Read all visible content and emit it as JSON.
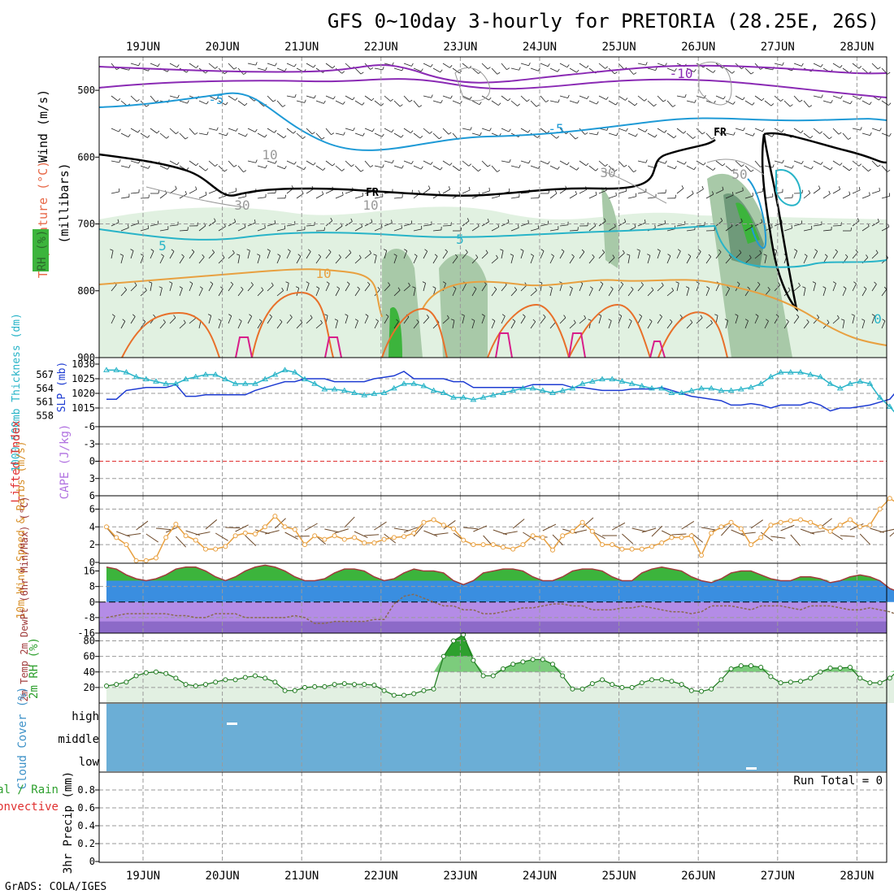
{
  "title": "GFS 0~10day 3-hourly for PRETORIA (28.25E, 26S)",
  "footer": "GrADS: COLA/IGES",
  "colors": {
    "frame": "#000000",
    "grid": "#9a9a9a",
    "slp": "#1e3cd2",
    "thickness": "#28b4c8",
    "wind10m": "#e8a040",
    "windbarb": "#6e4a2a",
    "temp": "#a03c3c",
    "dewpt": "#8a6a50",
    "rh": "#2ea02e",
    "cloud": "#6baed6",
    "lifted": "#e03030",
    "cape": "#b070e0",
    "tempFillPos": "#3cb43c",
    "tempFillBlue": "#3a8ee0",
    "tempFillPurple": "#b48ce6"
  },
  "chart_data": [
    {
      "id": "upper-air",
      "type": "contour",
      "title": "Upper-air cross section",
      "ylabel_parts": [
        "RH (%)",
        "Temperature (°C)",
        "Wind (m/s)"
      ],
      "yunit": "(millibars)",
      "yticks": [
        500,
        600,
        700,
        800,
        900
      ],
      "ylim": [
        450,
        900
      ],
      "contour_labels": [
        "-10",
        "-5",
        "-5",
        "5",
        "5",
        "10",
        "FR",
        "FR",
        "30",
        "30",
        "50",
        "10",
        "0",
        "10"
      ]
    },
    {
      "id": "slp-thickness",
      "type": "line",
      "ylabel_left": "1000-500mb Thickness (dm)",
      "ylabel_right": "SLP (mb)",
      "left_ticks": [
        "567",
        "564",
        "561",
        "558"
      ],
      "right_ticks": [
        "1030",
        "1025",
        "1020",
        "1015"
      ],
      "left_lim": [
        556.5,
        569.3
      ],
      "right_lim": [
        1010,
        1030
      ],
      "series": [
        {
          "name": "SLP (mb)",
          "axis": "right",
          "values": [
            1018,
            1018,
            1021,
            1021.5,
            1022,
            1022,
            1022,
            1023,
            1019,
            1019,
            1019.5,
            1019.5,
            1019.5,
            1019.5,
            1019.5,
            1021,
            1022,
            1023,
            1024,
            1024,
            1025,
            1025,
            1025,
            1024,
            1024,
            1024,
            1024,
            1025,
            1025.5,
            1026,
            1027.5,
            1025,
            1025,
            1025,
            1025,
            1024,
            1024,
            1022,
            1022,
            1022,
            1022,
            1022,
            1022,
            1023,
            1023,
            1023,
            1023,
            1022,
            1022,
            1021.5,
            1021,
            1021,
            1021,
            1021.5,
            1021.5,
            1021.5,
            1022,
            1021,
            1020,
            1019,
            1018.5,
            1018,
            1017.5,
            1016,
            1016,
            1016.5,
            1016,
            1015,
            1016,
            1016,
            1016,
            1017,
            1016,
            1014,
            1015,
            1015,
            1015.5,
            1016,
            1017,
            1018,
            1022,
            1025,
            1027,
            1028,
            1029,
            1028,
            1026,
            1025,
            1025,
            1026.5,
            1027,
            1028,
            1028,
            1028.5
          ]
        },
        {
          "name": "1000-500mb Thickness (dm)",
          "axis": "left",
          "values": [
            568,
            568,
            567.5,
            566.5,
            566,
            565.5,
            565,
            565,
            566,
            566.5,
            567,
            567,
            566,
            565,
            565,
            565,
            566,
            567,
            568,
            567.5,
            566,
            565,
            563.8,
            563.8,
            563.5,
            563,
            562.5,
            562.8,
            563,
            564,
            565,
            565,
            564.5,
            563.5,
            563,
            562,
            562,
            561.5,
            562,
            562.5,
            563,
            563.5,
            564,
            564,
            563.5,
            563,
            563.5,
            564,
            565,
            565.5,
            566,
            566,
            565.5,
            565,
            564.5,
            564,
            564,
            563,
            563,
            563.5,
            564,
            564,
            563.5,
            563.5,
            563.8,
            564.2,
            565,
            566.5,
            567.5,
            567.5,
            567.5,
            567,
            566.5,
            565,
            564,
            565,
            565.5,
            565,
            562,
            560,
            557.5,
            557.5,
            557.5,
            558,
            557.5,
            558,
            559.5,
            561,
            561.5,
            561,
            560.5,
            559.8,
            559,
            559.5
          ]
        }
      ]
    },
    {
      "id": "cape-li",
      "type": "line",
      "ylabel_left": "Lifted Index",
      "ylabel_right": "CAPE (J/kg)",
      "yticks": [
        "-6",
        "-3",
        "0",
        "3",
        "6"
      ],
      "ylim": [
        -6,
        6
      ],
      "series": [
        {
          "name": "Lifted Index",
          "values": []
        },
        {
          "name": "CAPE (J/kg)",
          "values": []
        }
      ]
    },
    {
      "id": "wind10m",
      "type": "line",
      "ylabel": "10m Wind Speed & Barbs (m/s)",
      "yticks": [
        "6",
        "4",
        "2",
        "0"
      ],
      "ylim": [
        0,
        7.5
      ],
      "series": [
        {
          "name": "10m Wind Speed (m/s)",
          "values": [
            4,
            2.8,
            2,
            0.2,
            0.2,
            0.5,
            2.8,
            4.3,
            3,
            2.5,
            1.5,
            1.5,
            1.8,
            3,
            3.3,
            3.2,
            4,
            5.2,
            4,
            3.7,
            2,
            3,
            2.6,
            3,
            2.6,
            2.8,
            2.2,
            2.2,
            2.6,
            2.8,
            2.9,
            3.3,
            4.5,
            4.8,
            4.2,
            3.8,
            2.5,
            2,
            2,
            2,
            1.7,
            1.5,
            2,
            3,
            2.8,
            1.4,
            3,
            3.5,
            4.5,
            3.5,
            2,
            2,
            1.5,
            1.5,
            1.5,
            1.8,
            2.2,
            2.8,
            2.8,
            3,
            0.8,
            3.3,
            4,
            4.5,
            3.8,
            2,
            2.8,
            4.2,
            4.5,
            4.7,
            4.8,
            4.5,
            4,
            3.5,
            4.2,
            4.8,
            4,
            4.2,
            6,
            7.2,
            6.5,
            6,
            5.8,
            5.5,
            5.5,
            5.8,
            3,
            2.5,
            2.9,
            3.2,
            2.5,
            2,
            2.8,
            2.5
          ]
        }
      ]
    },
    {
      "id": "temp2m",
      "type": "area",
      "ylabel": "2m Temp 2m DewPt (6hr Min/Max) (°C)",
      "yticks": [
        "16",
        "8",
        "0",
        "-8",
        "-16"
      ],
      "ylim": [
        -16,
        20
      ],
      "series": [
        {
          "name": "2m Temp (°C)",
          "values": [
            18,
            17,
            14,
            12,
            11,
            12,
            14,
            17,
            18,
            18,
            16,
            13,
            11,
            13,
            16,
            18,
            19,
            18,
            16,
            13,
            11,
            11,
            12,
            15,
            17,
            17,
            16,
            13,
            11,
            12,
            15,
            17,
            16,
            16,
            15,
            11,
            9,
            11,
            15,
            16,
            17,
            17,
            16,
            13,
            11,
            11,
            13,
            16,
            17,
            17,
            16,
            13,
            11,
            11,
            15,
            17,
            18,
            17,
            16,
            13,
            11,
            10,
            12,
            15,
            16,
            16,
            14,
            12,
            11,
            11,
            13,
            13,
            12,
            10,
            11,
            13,
            14,
            13,
            11,
            7,
            5,
            4,
            2.5,
            5,
            10,
            10,
            8,
            7,
            6,
            6,
            5,
            5,
            4,
            4
          ]
        },
        {
          "name": "2m DewPt (°C)",
          "values": [
            -8,
            -7,
            -6,
            -6,
            -6,
            -6,
            -6,
            -7,
            -7,
            -8,
            -8,
            -6,
            -6,
            -6,
            -8,
            -8,
            -8,
            -8,
            -8,
            -7,
            -8,
            -11,
            -11,
            -10,
            -10,
            -10,
            -10,
            -9,
            -9,
            -1,
            3,
            4,
            2,
            0,
            -2,
            -2,
            -4,
            -4,
            -6,
            -6,
            -5,
            -4,
            -3,
            -3,
            -2,
            -1,
            -1,
            -2,
            -2,
            -4,
            -4,
            -4,
            -3,
            -3,
            -2,
            -3,
            -4,
            -5,
            -5,
            -6,
            -5,
            -2,
            -2,
            -2,
            -3,
            -4,
            -2,
            -2,
            -2,
            -3,
            -4,
            -2,
            -2,
            -2,
            -3,
            -4,
            -4,
            -3,
            -4,
            -5,
            -7,
            -5,
            -3,
            -3,
            -4,
            -8,
            -11,
            -11,
            -9,
            -8,
            -7,
            -7,
            -6,
            -6
          ]
        }
      ]
    },
    {
      "id": "rh2m",
      "type": "area",
      "ylabel": "2m RH (%)",
      "yticks": [
        "80",
        "60",
        "40",
        "20"
      ],
      "ylim": [
        0,
        90
      ],
      "series": [
        {
          "name": "2m RH (%)",
          "values": [
            22,
            24,
            27,
            35,
            39,
            40,
            38,
            32,
            24,
            22,
            24,
            27,
            30,
            30,
            33,
            35,
            32,
            27,
            16,
            16,
            20,
            21,
            21,
            24,
            25,
            24,
            24,
            23,
            16,
            10,
            10,
            12,
            16,
            18,
            60,
            80,
            88,
            55,
            35,
            35,
            44,
            50,
            53,
            56,
            56,
            50,
            35,
            18,
            18,
            25,
            30,
            24,
            20,
            20,
            26,
            30,
            30,
            28,
            24,
            16,
            15,
            18,
            30,
            44,
            48,
            48,
            46,
            34,
            26,
            27,
            28,
            32,
            40,
            45,
            45,
            46,
            32,
            26,
            26,
            32,
            44,
            52,
            57,
            60,
            32,
            16,
            15,
            20,
            25,
            30,
            33,
            36,
            38,
            38
          ]
        }
      ]
    },
    {
      "id": "cloud",
      "type": "heatmap",
      "ylabel": "Cloud Cover (%)",
      "levels": [
        "high",
        "middle",
        "low"
      ],
      "values": {
        "high": 100,
        "middle": 100,
        "low": 100
      }
    },
    {
      "id": "precip",
      "type": "bar",
      "ylabel": "3hr Precip (mm)",
      "ylabel_left": "Total / Rain Convective",
      "yticks": [
        "0.8",
        "0.6",
        "0.4",
        "0.2",
        "0"
      ],
      "ylim": [
        0,
        1
      ],
      "run_total_text": "Run Total = 0",
      "series": [
        {
          "name": "Total / Rain",
          "values": []
        },
        {
          "name": "Convective",
          "values": []
        }
      ]
    }
  ],
  "axis": {
    "day_labels": [
      "19JUN",
      "20JUN",
      "21JUN",
      "22JUN",
      "23JUN",
      "24JUN",
      "25JUN",
      "26JUN",
      "27JUN",
      "28JUN"
    ]
  }
}
